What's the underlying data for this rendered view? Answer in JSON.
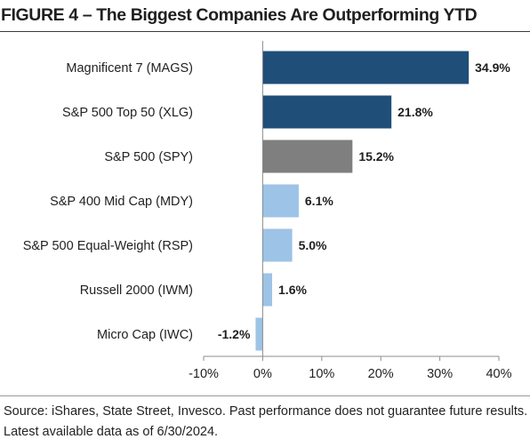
{
  "chart_title": "FIGURE 4 – The Biggest Companies Are Outperforming YTD",
  "source_note": "Source: iShares, State Street, Invesco. Past performance does not guarantee future results. Latest available data as of 6/30/2024.",
  "chart_data": {
    "type": "bar",
    "orientation": "horizontal",
    "title": "FIGURE 4 – The Biggest Companies Are Outperforming YTD",
    "categories": [
      "Magnificent 7 (MAGS)",
      "S&P 500 Top 50 (XLG)",
      "S&P 500 (SPY)",
      "S&P 400 Mid Cap (MDY)",
      "S&P 500 Equal-Weight (RSP)",
      "Russell 2000 (IWM)",
      "Micro Cap (IWC)"
    ],
    "values": [
      34.9,
      21.8,
      15.2,
      6.1,
      5.0,
      1.6,
      -1.2
    ],
    "value_labels": [
      "34.9%",
      "21.8%",
      "15.2%",
      "6.1%",
      "5.0%",
      "1.6%",
      "-1.2%"
    ],
    "colors": [
      "#1f4e79",
      "#1f4e79",
      "#7f7f7f",
      "#9dc3e6",
      "#9dc3e6",
      "#9dc3e6",
      "#9dc3e6"
    ],
    "xlim": [
      -10,
      40
    ],
    "xticks": [
      -10,
      0,
      10,
      20,
      30,
      40
    ],
    "xtick_labels": [
      "-10%",
      "0%",
      "10%",
      "20%",
      "30%",
      "40%"
    ],
    "xlabel": "",
    "ylabel": "",
    "grid": false,
    "legend": "none"
  }
}
